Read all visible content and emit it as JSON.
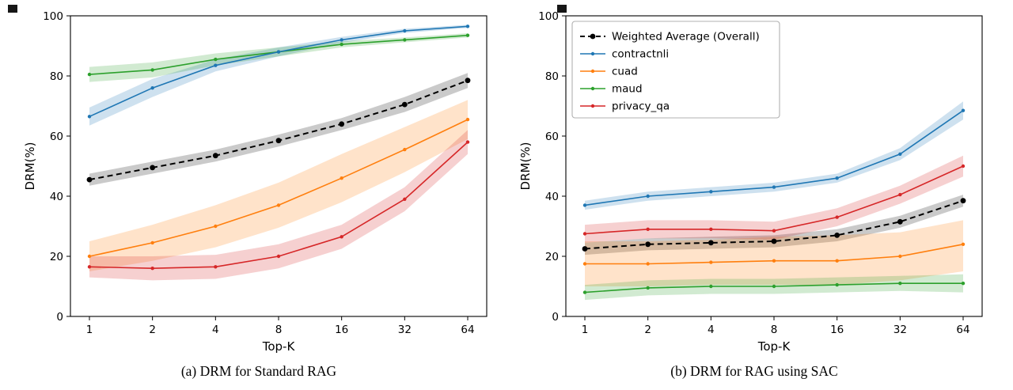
{
  "figure": {
    "caption_a": "(a) DRM for Standard RAG",
    "caption_b": "(b) DRM for RAG using SAC"
  },
  "colors": {
    "weighted": "#000000",
    "contractnli": "#1f77b4",
    "cuad": "#ff7f0e",
    "maud": "#2ca02c",
    "privacy_qa": "#d62728",
    "weighted_band": "#9e9e9e",
    "legend_border": "#b0b0b0"
  },
  "chart_data": [
    {
      "type": "line",
      "caption": "(a) DRM for Standard RAG",
      "xlabel": "Top-K",
      "ylabel": "DRM(%)",
      "x_ticks": [
        "1",
        "2",
        "4",
        "8",
        "16",
        "32",
        "64"
      ],
      "y_ticks": [
        0,
        20,
        40,
        60,
        80,
        100
      ],
      "ylim": [
        0,
        100
      ],
      "grid": false,
      "legend": false,
      "series": [
        {
          "name": "Weighted Average (Overall)",
          "color": "#000000",
          "dashed": true,
          "marker_size": 3.4,
          "band_color": "#9e9e9e",
          "band_opacity": 0.55,
          "values": [
            45.5,
            49.5,
            53.5,
            58.5,
            64,
            70.5,
            78.5
          ],
          "band_lo": [
            43.5,
            47.5,
            51.5,
            56.5,
            62,
            68,
            76
          ],
          "band_hi": [
            47.5,
            51.5,
            55.5,
            60.5,
            66,
            73,
            81
          ]
        },
        {
          "name": "contractnli",
          "color": "#1f77b4",
          "dashed": false,
          "marker_size": 2.2,
          "band_opacity": 0.22,
          "values": [
            66.5,
            76,
            83.5,
            88,
            92,
            95,
            96.5
          ],
          "band_lo": [
            63.5,
            73,
            81.5,
            86.5,
            91,
            94.3,
            96
          ],
          "band_hi": [
            69.5,
            79,
            85.5,
            89.5,
            93,
            95.7,
            97
          ]
        },
        {
          "name": "cuad",
          "color": "#ff7f0e",
          "dashed": false,
          "marker_size": 2.2,
          "band_opacity": 0.22,
          "values": [
            20,
            24.5,
            30,
            37,
            46,
            55.5,
            65.5
          ],
          "band_lo": [
            15,
            18.5,
            23,
            29.5,
            38,
            48,
            59
          ],
          "band_hi": [
            25,
            30.5,
            37,
            44.5,
            54,
            63,
            72
          ]
        },
        {
          "name": "maud",
          "color": "#2ca02c",
          "dashed": false,
          "marker_size": 2.2,
          "band_opacity": 0.22,
          "values": [
            80.5,
            82,
            85.5,
            88,
            90.5,
            92,
            93.5
          ],
          "band_lo": [
            78,
            79.5,
            83.5,
            86.5,
            89.5,
            91.2,
            92.8
          ],
          "band_hi": [
            83,
            84.5,
            87.5,
            89.5,
            91.5,
            92.8,
            94.2
          ]
        },
        {
          "name": "privacy_qa",
          "color": "#d62728",
          "dashed": false,
          "marker_size": 2.2,
          "band_opacity": 0.22,
          "values": [
            16.5,
            16,
            16.5,
            20,
            26.5,
            39,
            58
          ],
          "band_lo": [
            13,
            12,
            12.5,
            16,
            22.5,
            35,
            54
          ],
          "band_hi": [
            20,
            20,
            20.5,
            24,
            30.5,
            43,
            62
          ]
        }
      ]
    },
    {
      "type": "line",
      "caption": "(b) DRM for RAG using SAC",
      "xlabel": "Top-K",
      "ylabel": "DRM(%)",
      "x_ticks": [
        "1",
        "2",
        "4",
        "8",
        "16",
        "32",
        "64"
      ],
      "y_ticks": [
        0,
        20,
        40,
        60,
        80,
        100
      ],
      "ylim": [
        0,
        100
      ],
      "grid": false,
      "legend": true,
      "legend_position": "upper left",
      "series": [
        {
          "name": "Weighted Average (Overall)",
          "color": "#000000",
          "dashed": true,
          "marker_size": 3.4,
          "band_color": "#9e9e9e",
          "band_opacity": 0.55,
          "values": [
            22.5,
            24,
            24.5,
            25,
            27,
            31.5,
            38.5
          ],
          "band_lo": [
            20.5,
            22,
            22.5,
            23,
            25,
            29.5,
            36.5
          ],
          "band_hi": [
            24.5,
            26,
            26.5,
            27,
            29,
            33.5,
            40.5
          ]
        },
        {
          "name": "contractnli",
          "color": "#1f77b4",
          "dashed": false,
          "marker_size": 2.2,
          "band_opacity": 0.22,
          "values": [
            37,
            40,
            41.5,
            43,
            46,
            54,
            68.5
          ],
          "band_lo": [
            35.5,
            38.5,
            40,
            41.5,
            44.5,
            52,
            65.5
          ],
          "band_hi": [
            38.5,
            41.5,
            43,
            44.5,
            47.5,
            56,
            71.5
          ]
        },
        {
          "name": "cuad",
          "color": "#ff7f0e",
          "dashed": false,
          "marker_size": 2.2,
          "band_opacity": 0.22,
          "values": [
            17.5,
            17.5,
            18,
            18.5,
            18.5,
            20,
            24
          ],
          "band_lo": [
            10,
            10,
            10.5,
            10.5,
            10.5,
            12,
            15
          ],
          "band_hi": [
            25,
            25,
            25.5,
            26.5,
            27,
            28,
            32
          ]
        },
        {
          "name": "maud",
          "color": "#2ca02c",
          "dashed": false,
          "marker_size": 2.2,
          "band_opacity": 0.22,
          "values": [
            8,
            9.5,
            10,
            10,
            10.5,
            11,
            11
          ],
          "band_lo": [
            5.5,
            7,
            7.5,
            7.5,
            8,
            8.5,
            8
          ],
          "band_hi": [
            10.5,
            12,
            12.5,
            12.5,
            13,
            13.5,
            14
          ]
        },
        {
          "name": "privacy_qa",
          "color": "#d62728",
          "dashed": false,
          "marker_size": 2.2,
          "band_opacity": 0.22,
          "values": [
            27.5,
            29,
            29,
            28.5,
            33,
            40.5,
            50
          ],
          "band_lo": [
            24.5,
            26,
            26,
            25.5,
            30,
            37.5,
            46.5
          ],
          "band_hi": [
            30.5,
            32,
            32,
            31.5,
            36,
            43.5,
            53.5
          ]
        }
      ]
    }
  ]
}
